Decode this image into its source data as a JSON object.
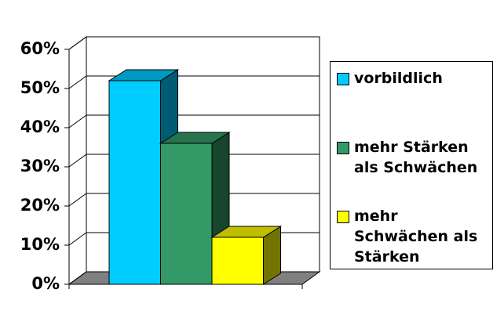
{
  "chart_data": {
    "type": "bar3d",
    "categories": [
      null
    ],
    "series": [
      {
        "name": "vorbildlich",
        "color": "#00ccff",
        "values": [
          52
        ]
      },
      {
        "name": "mehr Stärken als Schwächen",
        "color": "#339966",
        "values": [
          36
        ]
      },
      {
        "name": "mehr Schwächen als Stärken",
        "color": "#ffff00",
        "values": [
          12
        ]
      }
    ],
    "ylim": [
      0,
      60
    ],
    "yticks": [
      {
        "value": 0,
        "label": "0%"
      },
      {
        "value": 10,
        "label": "10%"
      },
      {
        "value": 20,
        "label": "20%"
      },
      {
        "value": 30,
        "label": "30%"
      },
      {
        "value": 40,
        "label": "40%"
      },
      {
        "value": 50,
        "label": "50%"
      },
      {
        "value": 60,
        "label": "60%"
      }
    ],
    "grid": true,
    "legend": "right"
  }
}
